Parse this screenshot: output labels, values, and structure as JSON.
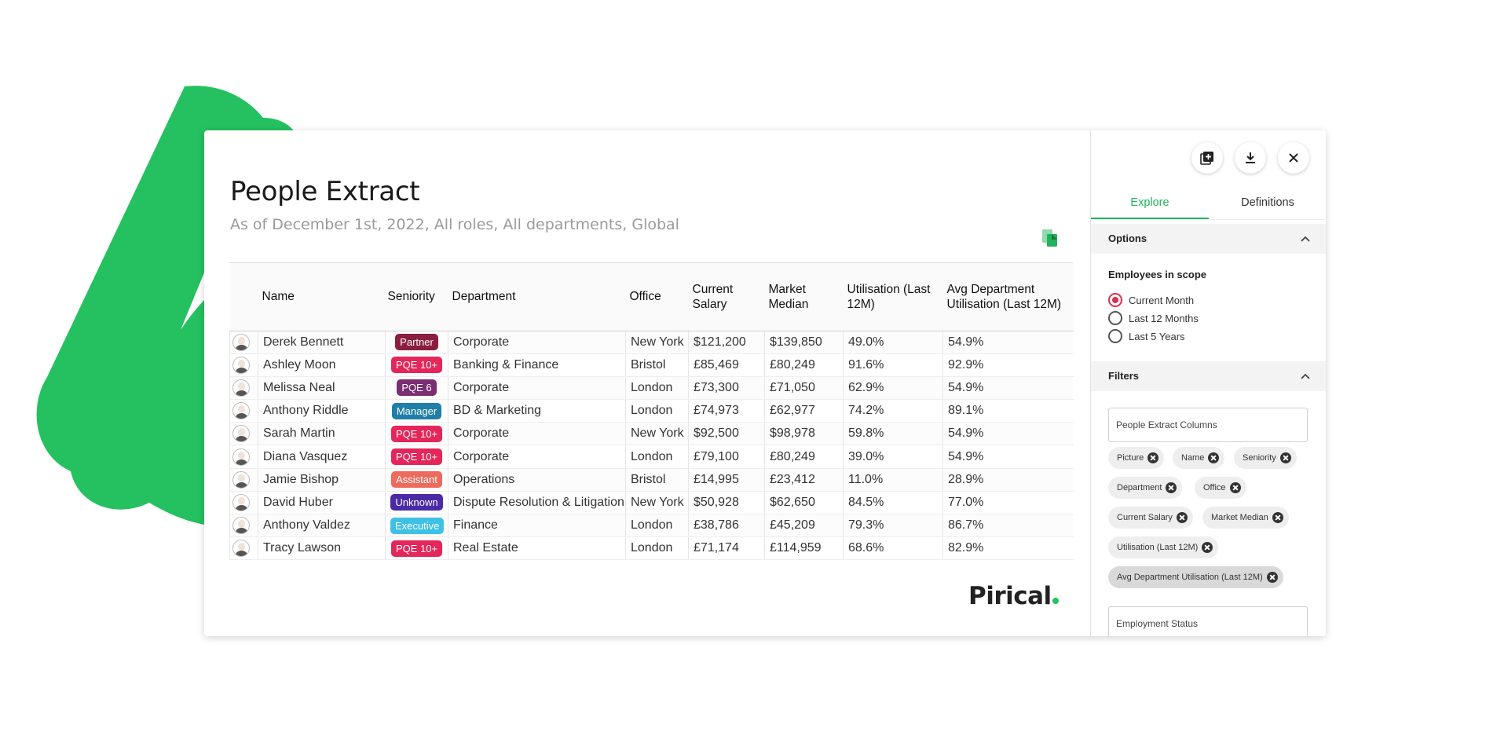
{
  "brand": {
    "accent": "#21b35c",
    "blob": "#25c160",
    "logo": "Pirical"
  },
  "main": {
    "title": "People Extract",
    "subtitle": "As of December 1st, 2022, All roles, All departments, Global",
    "columns": [
      "",
      "Name",
      "Seniority",
      "Department",
      "Office",
      "Current Salary",
      "Market Median",
      "Utilisation (Last 12M)",
      "Avg Department Utilisation (Last 12M)"
    ],
    "rows": [
      {
        "name": "Derek Bennett",
        "seniority": "Partner",
        "badge_color": "#8b1e3f",
        "department": "Corporate",
        "office": "New York",
        "salary": "$121,200",
        "median": "$139,850",
        "util": "49.0%",
        "avg_util": "54.9%"
      },
      {
        "name": "Ashley Moon",
        "seniority": "PQE 10+",
        "badge_color": "#e4265a",
        "department": "Banking & Finance",
        "office": "Bristol",
        "salary": "£85,469",
        "median": "£80,249",
        "util": "91.6%",
        "avg_util": "92.9%"
      },
      {
        "name": "Melissa Neal",
        "seniority": "PQE 6",
        "badge_color": "#7a2f72",
        "department": "Corporate",
        "office": "London",
        "salary": "£73,300",
        "median": "£71,050",
        "util": "62.9%",
        "avg_util": "54.9%"
      },
      {
        "name": "Anthony Riddle",
        "seniority": "Manager",
        "badge_color": "#1f7fa8",
        "department": "BD & Marketing",
        "office": "London",
        "salary": "£74,973",
        "median": "£62,977",
        "util": "74.2%",
        "avg_util": "89.1%"
      },
      {
        "name": "Sarah Martin",
        "seniority": "PQE 10+",
        "badge_color": "#e4265a",
        "department": "Corporate",
        "office": "New York",
        "salary": "$92,500",
        "median": "$98,978",
        "util": "59.8%",
        "avg_util": "54.9%"
      },
      {
        "name": "Diana Vasquez",
        "seniority": "PQE 10+",
        "badge_color": "#e4265a",
        "department": "Corporate",
        "office": "London",
        "salary": "£79,100",
        "median": "£80,249",
        "util": "39.0%",
        "avg_util": "54.9%"
      },
      {
        "name": "Jamie Bishop",
        "seniority": "Assistant",
        "badge_color": "#ee6a5e",
        "department": "Operations",
        "office": "Bristol",
        "salary": "£14,995",
        "median": "£23,412",
        "util": "11.0%",
        "avg_util": "28.9%"
      },
      {
        "name": "David Huber",
        "seniority": "Unknown",
        "badge_color": "#4b2aa6",
        "department": "Dispute Resolution & Litigation",
        "office": "New York",
        "salary": "$50,928",
        "median": "$62,650",
        "util": "84.5%",
        "avg_util": "77.0%"
      },
      {
        "name": "Anthony Valdez",
        "seniority": "Executive",
        "badge_color": "#3fc1e6",
        "department": "Finance",
        "office": "London",
        "salary": "£38,786",
        "median": "£45,209",
        "util": "79.3%",
        "avg_util": "86.7%"
      },
      {
        "name": "Tracy Lawson",
        "seniority": "PQE 10+",
        "badge_color": "#e4265a",
        "department": "Real Estate",
        "office": "London",
        "salary": "£71,174",
        "median": "£114,959",
        "util": "68.6%",
        "avg_util": "82.9%"
      }
    ]
  },
  "side": {
    "tabs": [
      "Explore",
      "Definitions"
    ],
    "options_title": "Options",
    "scope_label": "Employees in scope",
    "scope_options": [
      "Current Month",
      "Last 12 Months",
      "Last 5 Years"
    ],
    "scope_selected": "Current Month",
    "filters_title": "Filters",
    "columns_field": "People Extract Columns",
    "chips": [
      "Picture",
      "Name",
      "Seniority",
      "Department",
      "Office",
      "Current Salary",
      "Market Median",
      "Utilisation (Last 12M)",
      "Avg Department Utilisation (Last 12M)"
    ],
    "employment_field": "Employment Status",
    "icons": [
      "add-note-icon",
      "download-icon",
      "close-icon"
    ]
  }
}
